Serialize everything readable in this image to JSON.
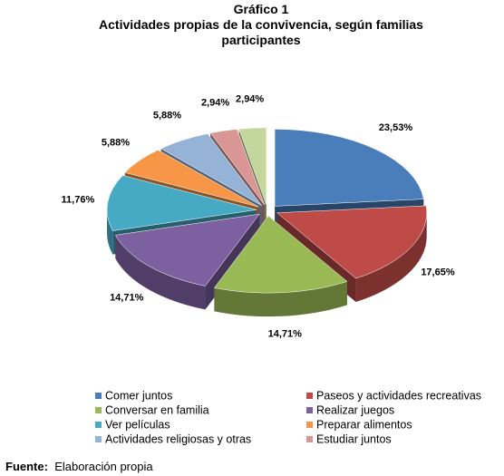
{
  "chart_data": {
    "type": "pie",
    "title": "Gráfico 1",
    "subtitle": "Actividades propias de la convivencia, según familias participantes",
    "categories": [
      "Comer juntos",
      "Paseos y actividades recreativas",
      "Conversar en familia",
      "Realizar juegos",
      "Ver películas",
      "Preparar alimentos",
      "Actividades religiosas y otras",
      "Estudiar juntos",
      null
    ],
    "values": [
      23.53,
      17.65,
      14.71,
      14.71,
      11.76,
      5.88,
      5.88,
      2.94,
      2.94
    ],
    "value_labels": [
      "23,53%",
      "17,65%",
      "14,71%",
      "14,71%",
      "11,76%",
      "5,88%",
      "5,88%",
      "2,94%",
      "2,94%"
    ],
    "colors": [
      "#4a7ebb",
      "#be4b48",
      "#98b954",
      "#7d60a0",
      "#46aac5",
      "#f79646",
      "#95b3d7",
      "#d99694",
      "#c3d69b"
    ]
  },
  "source": {
    "label": "Fuente:",
    "text": "Elaboración propia"
  }
}
